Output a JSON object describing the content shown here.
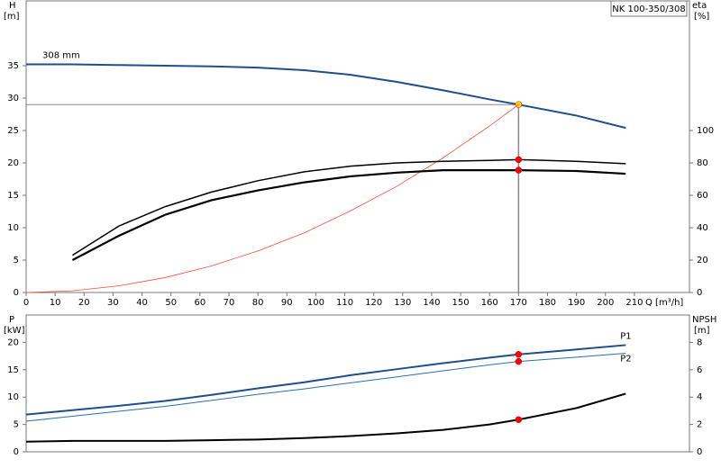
{
  "chart_data": [
    {
      "type": "line",
      "title": "NK 100-350/308",
      "y_label": "H",
      "y_unit": "[m]",
      "y2_label": "eta",
      "y2_unit": "[%]",
      "x_label": "Q [m³/h]",
      "x": [
        0,
        16,
        32,
        48,
        64,
        80,
        96,
        112,
        128,
        144,
        160,
        170,
        190,
        207
      ],
      "xlim": [
        0,
        229
      ],
      "xticks": [
        0,
        10,
        20,
        30,
        40,
        50,
        60,
        70,
        80,
        90,
        100,
        110,
        120,
        130,
        140,
        150,
        160,
        170,
        180,
        190,
        200,
        210
      ],
      "ylim": [
        0,
        45
      ],
      "yticks": [
        0,
        5,
        10,
        15,
        20,
        25,
        30,
        35
      ],
      "y2lim": [
        0,
        180
      ],
      "y2ticks": [
        0,
        20,
        40,
        60,
        80,
        100
      ],
      "duty_x": 170,
      "series": [
        {
          "name": "308 mm",
          "label_at": "start",
          "color": "#1f4e8c",
          "width": 2,
          "marker": "#ffd700",
          "guide": true,
          "values": [
            35.2,
            35.2,
            35.1,
            35.0,
            34.9,
            34.7,
            34.3,
            33.6,
            32.5,
            31.2,
            29.8,
            29.0,
            27.3,
            25.4
          ]
        },
        {
          "color": "#ff4a3a",
          "width": 0.8,
          "values": [
            0,
            0.26,
            1.03,
            2.3,
            4.1,
            6.4,
            9.2,
            12.6,
            16.4,
            20.8,
            25.7,
            29.0,
            null,
            null
          ]
        },
        {
          "color": "#000000",
          "width": 1.5,
          "axis": "y2",
          "marker": "#ff0000",
          "values": [
            null,
            23,
            41,
            53,
            62,
            69,
            74.5,
            78,
            80,
            81,
            81.5,
            82,
            81,
            79.5
          ]
        },
        {
          "color": "#000000",
          "width": 2.2,
          "axis": "y2",
          "marker": "#ff0000",
          "values": [
            null,
            20,
            35,
            48,
            57,
            63,
            68,
            71.7,
            74,
            75.5,
            75.5,
            75.5,
            75,
            73.3
          ]
        }
      ]
    },
    {
      "type": "line",
      "y_label": "P",
      "y_unit": "[kW]",
      "y2_label": "NPSH",
      "y2_unit": "[m]",
      "x": [
        0,
        16,
        32,
        48,
        64,
        80,
        96,
        112,
        128,
        144,
        160,
        170,
        190,
        207
      ],
      "xlim": [
        0,
        229
      ],
      "ylim": [
        0,
        25
      ],
      "yticks": [
        0,
        5,
        10,
        15,
        20
      ],
      "y2lim": [
        0,
        10
      ],
      "y2ticks": [
        0,
        2,
        4,
        6,
        8
      ],
      "duty_x": 170,
      "series": [
        {
          "name": "P1",
          "label_at": "end",
          "color": "#1f4e8c",
          "width": 2,
          "marker": "#ff0000",
          "values": [
            6.8,
            7.6,
            8.4,
            9.3,
            10.4,
            11.6,
            12.7,
            14.0,
            15.1,
            16.2,
            17.2,
            17.8,
            18.7,
            19.5
          ]
        },
        {
          "name": "P2",
          "label_at": "end",
          "color": "#2a6db5",
          "width": 1,
          "marker": "#ff0000",
          "values": [
            5.6,
            6.5,
            7.4,
            8.3,
            9.4,
            10.5,
            11.5,
            12.6,
            13.7,
            14.8,
            15.9,
            16.5,
            17.3,
            18.0
          ]
        },
        {
          "color": "#000000",
          "width": 2,
          "axis": "y2",
          "marker": "#ff0000",
          "values": [
            0.74,
            0.8,
            0.8,
            0.8,
            0.85,
            0.9,
            1.0,
            1.15,
            1.35,
            1.6,
            2.0,
            2.35,
            3.2,
            4.25
          ]
        }
      ]
    }
  ]
}
